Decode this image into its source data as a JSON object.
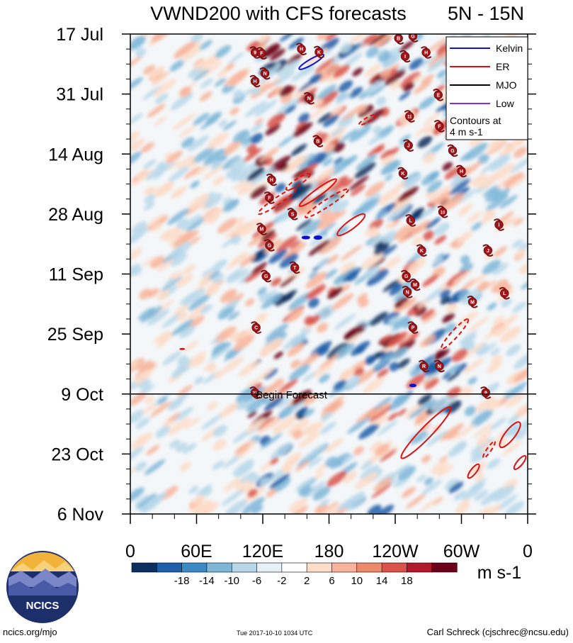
{
  "chart_data": {
    "type": "heatmap",
    "title": "VWND200 with CFS forecasts",
    "region": "5N - 15N",
    "y_tick_labels": [
      "17 Jul",
      "31 Jul",
      "14 Aug",
      "28 Aug",
      "11 Sep",
      "25 Sep",
      "9 Oct",
      "23 Oct",
      "6 Nov"
    ],
    "x_tick_labels": [
      "0",
      "60E",
      "120E",
      "180",
      "120W",
      "60W",
      "0"
    ],
    "x_range_deg_east": [
      0,
      360
    ],
    "y_range_days_from_17jul": [
      0,
      112
    ],
    "forecast_line": {
      "label": "Begin Forecast",
      "day": 84
    },
    "legend": {
      "entries": [
        {
          "name": "Kelvin",
          "color": "#1010d0"
        },
        {
          "name": "ER",
          "color": "#e01010"
        },
        {
          "name": "MJO",
          "color": "#000000"
        },
        {
          "name": "Low",
          "color": "#8a2be2"
        }
      ],
      "note_line1": "Contours at",
      "note_line2": "4 m s-1"
    },
    "colorbar": {
      "labels": [
        "-18",
        "-14",
        "-10",
        "-6",
        "-2",
        "2",
        "6",
        "10",
        "14",
        "18"
      ],
      "colors": [
        "#0b2f5e",
        "#1f5ea8",
        "#3c8ac4",
        "#7eb6d8",
        "#b8d8ea",
        "#e6f1f7",
        "#ffffff",
        "#fddcc8",
        "#f8b49a",
        "#ee8a6c",
        "#d9534a",
        "#b01a2a",
        "#6b0018"
      ],
      "units": "m s-1"
    },
    "tc_markers": [
      {
        "lon": 113,
        "day": 4.3,
        "label": "9"
      },
      {
        "lon": 119,
        "day": 4.5,
        "label": "F"
      },
      {
        "lon": 155,
        "day": 3.5,
        "label": "H"
      },
      {
        "lon": 171,
        "day": 4.2,
        "label": "K"
      },
      {
        "lon": 122,
        "day": 9.2,
        "label": "N"
      },
      {
        "lon": 113,
        "day": 11,
        "label": "H"
      },
      {
        "lon": 162,
        "day": 15,
        "label": "N"
      },
      {
        "lon": 243,
        "day": 1,
        "label": "B"
      },
      {
        "lon": 256,
        "day": 0.5,
        "label": "G"
      },
      {
        "lon": 249,
        "day": 5.2,
        "label": "I"
      },
      {
        "lon": 268,
        "day": 4.3,
        "label": "H"
      },
      {
        "lon": 279,
        "day": 14.2,
        "label": "E"
      },
      {
        "lon": 253,
        "day": 19.2,
        "label": "11"
      },
      {
        "lon": 280,
        "day": 21.5,
        "label": "F"
      },
      {
        "lon": 170,
        "day": 25,
        "label": "B"
      },
      {
        "lon": 252,
        "day": 26,
        "label": "J"
      },
      {
        "lon": 292,
        "day": 27.2,
        "label": "G"
      },
      {
        "lon": 247,
        "day": 32.5,
        "label": "K"
      },
      {
        "lon": 300,
        "day": 32,
        "label": "H"
      },
      {
        "lon": 128,
        "day": 34,
        "label": "H"
      },
      {
        "lon": 126,
        "day": 38.2,
        "label": "F"
      },
      {
        "lon": 147,
        "day": 42,
        "label": "S"
      },
      {
        "lon": 283,
        "day": 41.5,
        "label": "10"
      },
      {
        "lon": 254,
        "day": 43.5,
        "label": "L"
      },
      {
        "lon": 334,
        "day": 44.5,
        "label": "I"
      },
      {
        "lon": 119,
        "day": 45.5,
        "label": "M"
      },
      {
        "lon": 126,
        "day": 49.3,
        "label": "G"
      },
      {
        "lon": 264,
        "day": 50.5,
        "label": "K"
      },
      {
        "lon": 324,
        "day": 50.5,
        "label": "J"
      },
      {
        "lon": 149,
        "day": 54.5,
        "label": "T"
      },
      {
        "lon": 123,
        "day": 56.5,
        "label": "G"
      },
      {
        "lon": 250,
        "day": 56.5,
        "label": "G"
      },
      {
        "lon": 258,
        "day": 58.5,
        "label": "M"
      },
      {
        "lon": 251,
        "day": 60.2,
        "label": "N"
      },
      {
        "lon": 339,
        "day": 60.5,
        "label": "L"
      },
      {
        "lon": 310,
        "day": 62.5,
        "label": "M"
      },
      {
        "lon": 114,
        "day": 68.5,
        "label": "C"
      },
      {
        "lon": 256,
        "day": 68.5,
        "label": "P"
      },
      {
        "lon": 266,
        "day": 77.5,
        "label": "R"
      },
      {
        "lon": 280,
        "day": 77.5,
        "label": "N"
      },
      {
        "lon": 113,
        "day": 83.7,
        "label": "23"
      },
      {
        "lon": 322,
        "day": 83.7,
        "label": "9"
      }
    ]
  },
  "footer": {
    "website": "ncics.org/mjo",
    "timestamp": "Tue 2017-10-10 1034 UTC",
    "credit": "Carl Schreck (cjschrec@ncsu.edu)",
    "logo_text": "NCICS"
  }
}
